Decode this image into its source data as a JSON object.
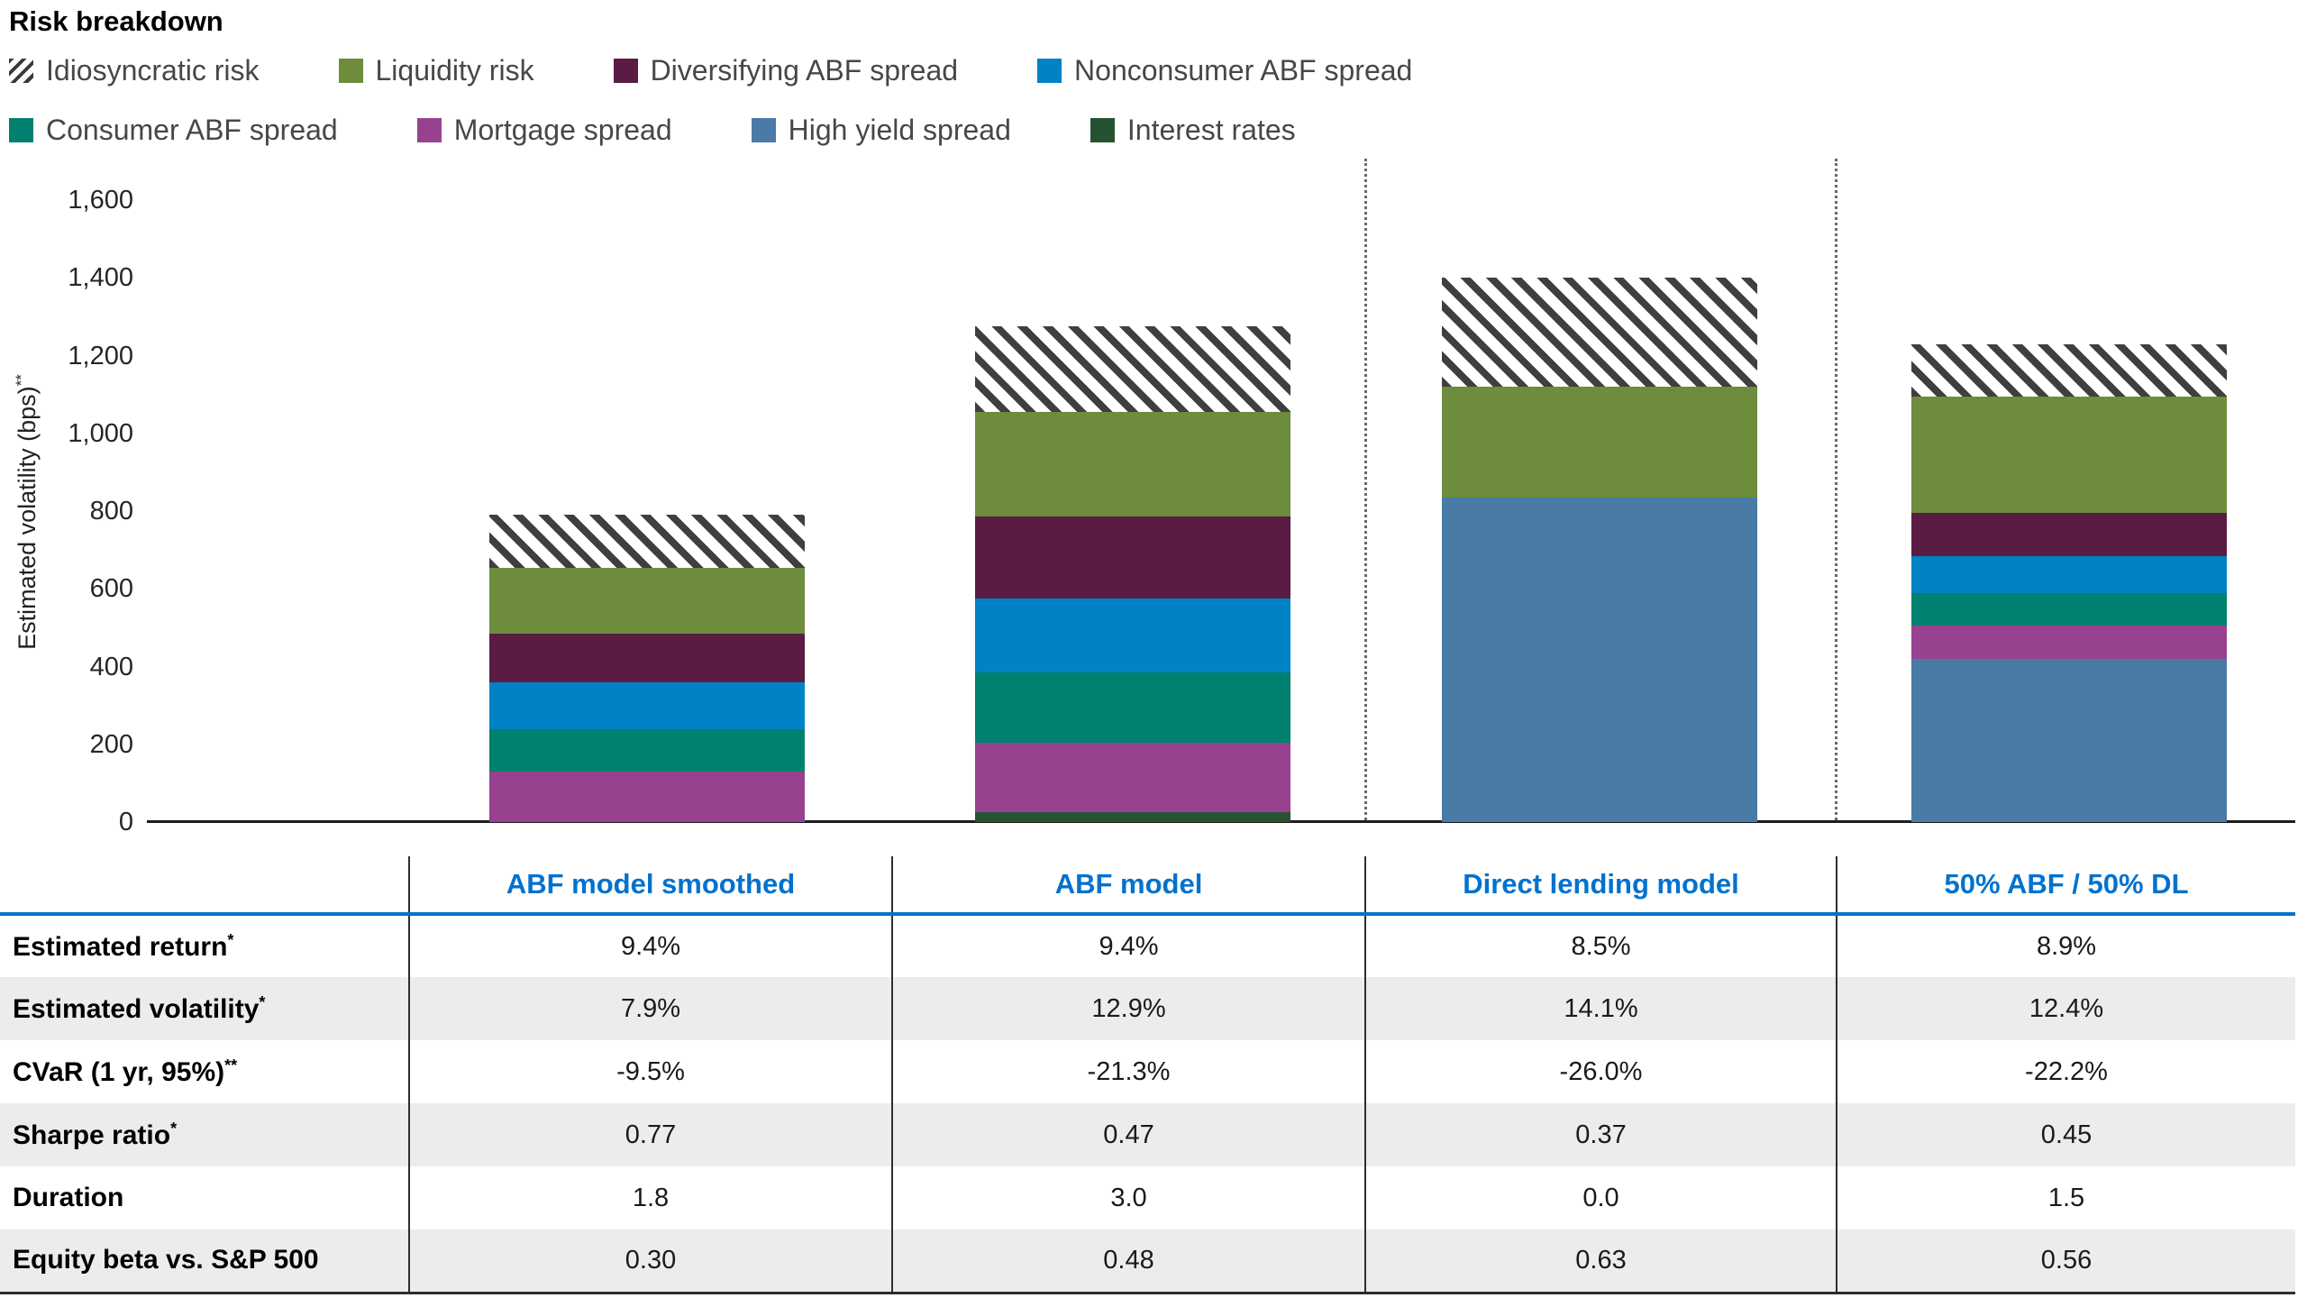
{
  "title": "Risk breakdown",
  "legend": {
    "rows": [
      [
        {
          "label": "Idiosyncratic risk",
          "swatch": "hatch"
        },
        {
          "label": "Liquidity risk",
          "swatch": "#6d8c3c"
        },
        {
          "label": "Diversifying ABF spread",
          "swatch": "#5b1c44"
        },
        {
          "label": "Nonconsumer ABF spread",
          "swatch": "#0082c6"
        }
      ],
      [
        {
          "label": "Consumer ABF spread",
          "swatch": "#00816f"
        },
        {
          "label": "Mortgage spread",
          "swatch": "#98428f"
        },
        {
          "label": "High yield spread",
          "swatch": "#4a7aa6"
        },
        {
          "label": "Interest rates",
          "swatch": "#275231"
        }
      ]
    ]
  },
  "chart_data": {
    "type": "bar",
    "stacked": true,
    "title": "Risk breakdown",
    "ylabel": "Estimated volatility (bps)",
    "ylabel_sup": "**",
    "xlabel": "",
    "ylim": [
      0,
      1600
    ],
    "grid": false,
    "legend_position": "top",
    "ytick_values": [
      0,
      200,
      400,
      600,
      800,
      1000,
      1200,
      1400,
      1600
    ],
    "ytick_labels": [
      "0",
      "200",
      "400",
      "600",
      "800",
      "1,000",
      "1,200",
      "1,400",
      "1,600"
    ],
    "categories": [
      "ABF model smoothed",
      "ABF model",
      "Direct lending model",
      "50% ABF / 50% DL"
    ],
    "series": [
      {
        "name": "Interest rates",
        "color": "#275231",
        "values": [
          0,
          25,
          0,
          0
        ]
      },
      {
        "name": "High yield spread",
        "color": "#4a7aa6",
        "values": [
          0,
          0,
          835,
          420
        ]
      },
      {
        "name": "Mortgage spread",
        "color": "#98428f",
        "values": [
          130,
          180,
          0,
          85
        ]
      },
      {
        "name": "Consumer ABF spread",
        "color": "#00816f",
        "values": [
          110,
          180,
          0,
          85
        ]
      },
      {
        "name": "Nonconsumer ABF spread",
        "color": "#0082c6",
        "values": [
          120,
          190,
          0,
          95
        ]
      },
      {
        "name": "Diversifying ABF spread",
        "color": "#5b1c44",
        "values": [
          125,
          210,
          0,
          110
        ]
      },
      {
        "name": "Liquidity risk",
        "color": "#6d8c3c",
        "values": [
          170,
          270,
          285,
          300
        ]
      },
      {
        "name": "Idiosyncratic risk",
        "color": "hatch",
        "values": [
          135,
          220,
          280,
          135
        ]
      }
    ],
    "bar_totals": [
      790,
      1275,
      1400,
      1230
    ]
  },
  "table": {
    "header_color": "#0072ce",
    "columns": [
      "",
      "ABF model smoothed",
      "ABF model",
      "Direct lending model",
      "50% ABF / 50% DL"
    ],
    "rows": [
      {
        "label": "Estimated return",
        "sup": "*",
        "values": [
          "9.4%",
          "9.4%",
          "8.5%",
          "8.9%"
        ]
      },
      {
        "label": "Estimated volatility",
        "sup": "*",
        "values": [
          "7.9%",
          "12.9%",
          "14.1%",
          "12.4%"
        ]
      },
      {
        "label": "CVaR (1 yr, 95%)",
        "sup": "**",
        "values": [
          "-9.5%",
          "-21.3%",
          "-26.0%",
          "-22.2%"
        ]
      },
      {
        "label": "Sharpe ratio",
        "sup": "*",
        "values": [
          "0.77",
          "0.47",
          "0.37",
          "0.45"
        ]
      },
      {
        "label": "Duration",
        "sup": "",
        "values": [
          "1.8",
          "3.0",
          "0.0",
          "1.5"
        ]
      },
      {
        "label": "Equity beta vs. S&P 500",
        "sup": "",
        "values": [
          "0.30",
          "0.48",
          "0.63",
          "0.56"
        ]
      }
    ]
  }
}
